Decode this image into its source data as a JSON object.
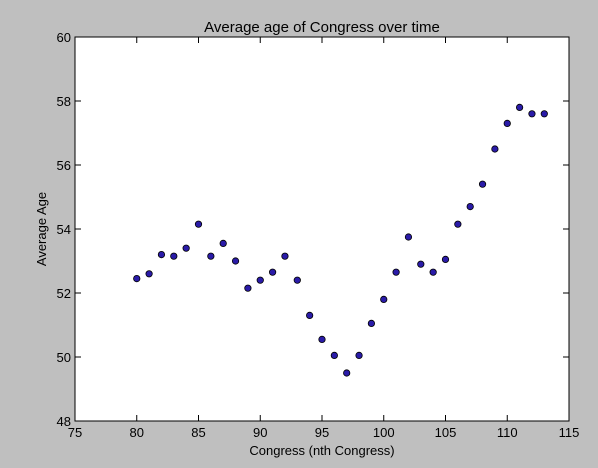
{
  "figure": {
    "background": "#bfbfbf",
    "plot_background": "#ffffff",
    "marker_color": "#2a1ba8",
    "marker_edge": "#000000"
  },
  "chart_data": {
    "type": "scatter",
    "title": "Average age of Congress over time",
    "xlabel": "Congress (nth Congress)",
    "ylabel": "Average Age",
    "xlim": [
      75,
      115
    ],
    "ylim": [
      48,
      60
    ],
    "xticks": [
      75,
      80,
      85,
      90,
      95,
      100,
      105,
      110,
      115
    ],
    "yticks": [
      48,
      50,
      52,
      54,
      56,
      58,
      60
    ],
    "grid": false,
    "legend": "none",
    "series": [
      {
        "x": [
          80,
          81,
          82,
          83,
          84,
          85,
          86,
          87,
          88,
          89,
          90,
          91,
          92,
          93,
          94,
          95,
          96,
          97,
          98,
          99,
          100,
          101,
          102,
          103,
          104,
          105,
          106,
          107,
          108,
          109,
          110,
          111,
          112,
          113
        ],
        "y": [
          52.45,
          52.6,
          53.2,
          53.15,
          53.4,
          54.15,
          53.15,
          53.55,
          53.0,
          52.15,
          52.4,
          52.65,
          53.15,
          52.4,
          51.3,
          50.55,
          50.05,
          49.5,
          50.05,
          51.05,
          51.8,
          52.65,
          53.75,
          52.9,
          52.65,
          53.05,
          54.15,
          54.7,
          55.4,
          56.5,
          57.3,
          57.8,
          57.6,
          57.6
        ]
      }
    ]
  }
}
